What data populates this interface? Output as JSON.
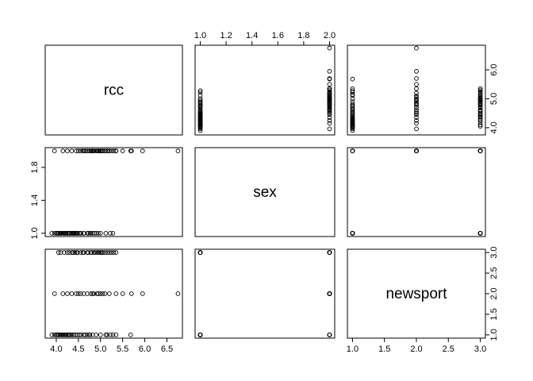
{
  "chart_data": {
    "type": "scatter",
    "title": "",
    "variables": [
      "rcc",
      "sex",
      "newsport"
    ],
    "axes": {
      "rcc": {
        "range": [
          3.75,
          6.85
        ],
        "ticks": [
          4.0,
          4.5,
          5.0,
          5.5,
          6.0,
          6.5
        ],
        "tick_labels": [
          "4.0",
          "4.5",
          "5.0",
          "5.5",
          "6.0",
          "6.5"
        ],
        "right_axis_ticks": [
          4.0,
          5.0,
          6.0
        ],
        "right_axis_labels": [
          "4.0",
          "5.0",
          "6.0"
        ]
      },
      "sex": {
        "range": [
          0.96,
          2.04
        ],
        "ticks": [
          1.0,
          1.2,
          1.4,
          1.6,
          1.8,
          2.0
        ],
        "tick_labels": [
          "1.0",
          "1.2",
          "1.4",
          "1.6",
          "1.8",
          "2.0"
        ],
        "left_axis_ticks": [
          1.0,
          1.4,
          1.8
        ],
        "left_axis_labels": [
          "1.0",
          "1.4",
          "1.8"
        ]
      },
      "newsport": {
        "range": [
          0.92,
          3.08
        ],
        "ticks": [
          1.0,
          1.5,
          2.0,
          2.5,
          3.0
        ],
        "tick_labels": [
          "1.0",
          "1.5",
          "2.0",
          "2.5",
          "3.0"
        ]
      }
    },
    "observations": {
      "sex_1": [
        {
          "rcc": 3.9,
          "newsport": 1
        },
        {
          "rcc": 3.96,
          "newsport": 1
        },
        {
          "rcc": 4.0,
          "newsport": 1
        },
        {
          "rcc": 4.02,
          "newsport": 1
        },
        {
          "rcc": 4.05,
          "newsport": 1
        },
        {
          "rcc": 4.08,
          "newsport": 1
        },
        {
          "rcc": 4.1,
          "newsport": 1
        },
        {
          "rcc": 4.12,
          "newsport": 1
        },
        {
          "rcc": 4.15,
          "newsport": 1
        },
        {
          "rcc": 4.18,
          "newsport": 1
        },
        {
          "rcc": 4.2,
          "newsport": 1
        },
        {
          "rcc": 4.22,
          "newsport": 1
        },
        {
          "rcc": 4.25,
          "newsport": 1
        },
        {
          "rcc": 4.28,
          "newsport": 1
        },
        {
          "rcc": 4.3,
          "newsport": 1
        },
        {
          "rcc": 4.33,
          "newsport": 1
        },
        {
          "rcc": 4.36,
          "newsport": 1
        },
        {
          "rcc": 4.4,
          "newsport": 1
        },
        {
          "rcc": 4.44,
          "newsport": 1
        },
        {
          "rcc": 4.48,
          "newsport": 1
        },
        {
          "rcc": 4.52,
          "newsport": 1
        },
        {
          "rcc": 4.56,
          "newsport": 1
        },
        {
          "rcc": 4.62,
          "newsport": 1
        },
        {
          "rcc": 4.7,
          "newsport": 1
        },
        {
          "rcc": 4.76,
          "newsport": 1
        },
        {
          "rcc": 4.82,
          "newsport": 1
        },
        {
          "rcc": 4.9,
          "newsport": 1
        },
        {
          "rcc": 5.0,
          "newsport": 1
        },
        {
          "rcc": 5.12,
          "newsport": 1
        },
        {
          "rcc": 5.22,
          "newsport": 1
        },
        {
          "rcc": 5.28,
          "newsport": 1
        },
        {
          "rcc": 4.05,
          "newsport": 3
        },
        {
          "rcc": 4.1,
          "newsport": 3
        },
        {
          "rcc": 4.18,
          "newsport": 3
        },
        {
          "rcc": 4.25,
          "newsport": 3
        },
        {
          "rcc": 4.3,
          "newsport": 3
        },
        {
          "rcc": 4.36,
          "newsport": 3
        },
        {
          "rcc": 4.42,
          "newsport": 3
        },
        {
          "rcc": 4.48,
          "newsport": 3
        },
        {
          "rcc": 4.55,
          "newsport": 3
        },
        {
          "rcc": 4.62,
          "newsport": 3
        },
        {
          "rcc": 4.72,
          "newsport": 3
        },
        {
          "rcc": 4.78,
          "newsport": 3
        },
        {
          "rcc": 4.86,
          "newsport": 3
        },
        {
          "rcc": 4.95,
          "newsport": 3
        },
        {
          "rcc": 4.38,
          "newsport": 3
        },
        {
          "rcc": 4.46,
          "newsport": 3
        }
      ],
      "sex_2": [
        {
          "rcc": 3.96,
          "newsport": 2
        },
        {
          "rcc": 4.15,
          "newsport": 2
        },
        {
          "rcc": 4.25,
          "newsport": 2
        },
        {
          "rcc": 4.35,
          "newsport": 2
        },
        {
          "rcc": 4.45,
          "newsport": 2
        },
        {
          "rcc": 4.55,
          "newsport": 2
        },
        {
          "rcc": 4.62,
          "newsport": 2
        },
        {
          "rcc": 4.7,
          "newsport": 2
        },
        {
          "rcc": 4.78,
          "newsport": 2
        },
        {
          "rcc": 4.85,
          "newsport": 2
        },
        {
          "rcc": 4.92,
          "newsport": 2
        },
        {
          "rcc": 5.0,
          "newsport": 2
        },
        {
          "rcc": 5.1,
          "newsport": 2
        },
        {
          "rcc": 5.2,
          "newsport": 2
        },
        {
          "rcc": 5.35,
          "newsport": 2
        },
        {
          "rcc": 5.5,
          "newsport": 2
        },
        {
          "rcc": 5.7,
          "newsport": 2
        },
        {
          "rcc": 5.95,
          "newsport": 2
        },
        {
          "rcc": 6.75,
          "newsport": 2
        },
        {
          "rcc": 4.5,
          "newsport": 2
        },
        {
          "rcc": 4.82,
          "newsport": 2
        },
        {
          "rcc": 4.95,
          "newsport": 2
        },
        {
          "rcc": 5.05,
          "newsport": 2
        },
        {
          "rcc": 4.6,
          "newsport": 3
        },
        {
          "rcc": 4.7,
          "newsport": 3
        },
        {
          "rcc": 4.8,
          "newsport": 3
        },
        {
          "rcc": 4.85,
          "newsport": 3
        },
        {
          "rcc": 4.9,
          "newsport": 3
        },
        {
          "rcc": 4.95,
          "newsport": 3
        },
        {
          "rcc": 5.0,
          "newsport": 3
        },
        {
          "rcc": 5.05,
          "newsport": 3
        },
        {
          "rcc": 5.1,
          "newsport": 3
        },
        {
          "rcc": 5.15,
          "newsport": 3
        },
        {
          "rcc": 5.2,
          "newsport": 3
        },
        {
          "rcc": 5.25,
          "newsport": 3
        },
        {
          "rcc": 5.3,
          "newsport": 3
        },
        {
          "rcc": 5.35,
          "newsport": 3
        },
        {
          "rcc": 4.96,
          "newsport": 3
        },
        {
          "rcc": 5.02,
          "newsport": 3
        },
        {
          "rcc": 4.65,
          "newsport": 1
        },
        {
          "rcc": 4.75,
          "newsport": 1
        },
        {
          "rcc": 5.15,
          "newsport": 1
        },
        {
          "rcc": 5.35,
          "newsport": 1
        },
        {
          "rcc": 5.68,
          "newsport": 1
        }
      ]
    }
  }
}
